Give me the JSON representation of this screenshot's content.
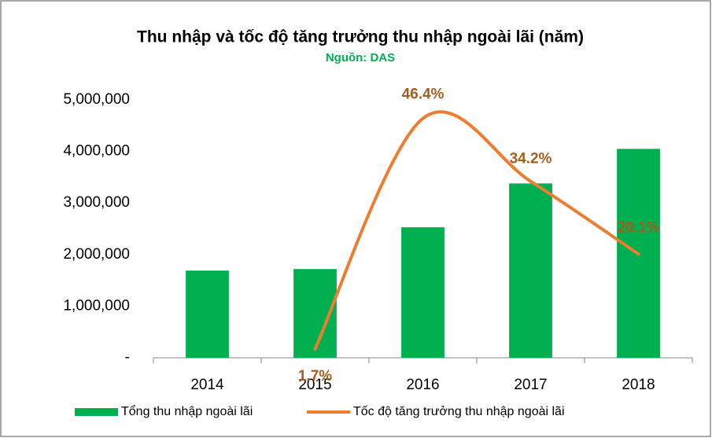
{
  "chart_data": {
    "type": "bar_line",
    "title": "Thu nhập và tốc độ tăng trưởng thu nhập ngoài lãi (năm)",
    "subtitle": "Nguồn: DAS",
    "categories": [
      "2014",
      "2015",
      "2016",
      "2017",
      "2018"
    ],
    "series": [
      {
        "name": "Tổng thu nhập ngoài lãi",
        "type": "bar",
        "color": "#00b050",
        "values": [
          1690000,
          1720000,
          2530000,
          3380000,
          4050000
        ]
      },
      {
        "name": "Tốc độ tăng trưởng thu nhập ngoài lãi",
        "type": "line",
        "axis": "y2",
        "color": "#ed7d31",
        "label_color": "#a35d1e",
        "smooth": true,
        "values": [
          null,
          1.7,
          46.4,
          34.2,
          20.1
        ],
        "value_labels": [
          null,
          "1.7%",
          "46.4%",
          "34.2%",
          "20.1%"
        ]
      }
    ],
    "ylim": [
      0,
      5000000
    ],
    "yticks": [
      {
        "value": 0,
        "label": "-"
      },
      {
        "value": 1000000,
        "label": "1,000,000"
      },
      {
        "value": 2000000,
        "label": "2,000,000"
      },
      {
        "value": 3000000,
        "label": "3,000,000"
      },
      {
        "value": 4000000,
        "label": "4,000,000"
      },
      {
        "value": 5000000,
        "label": "5,000,000"
      }
    ],
    "y2lim": [
      0,
      50
    ],
    "legend": "bottom"
  }
}
